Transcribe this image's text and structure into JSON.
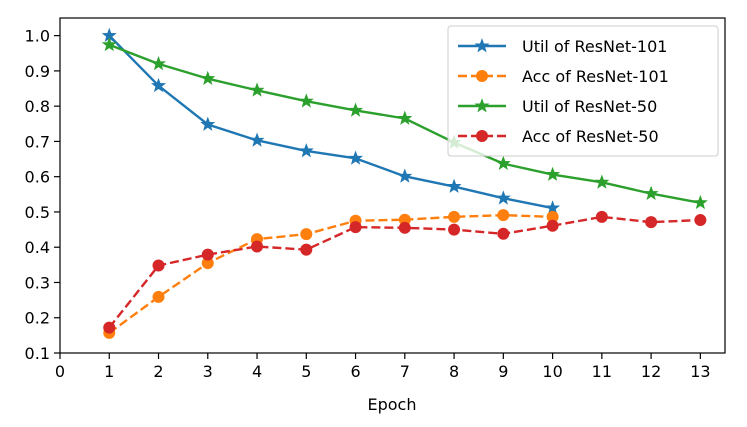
{
  "chart_data": {
    "type": "line",
    "title": "",
    "xlabel": "Epoch",
    "ylabel": "",
    "xlim": [
      0,
      13.5
    ],
    "ylim": [
      0.1,
      1.05
    ],
    "xticks": [
      0,
      1,
      2,
      3,
      4,
      5,
      6,
      7,
      8,
      9,
      10,
      11,
      12,
      13
    ],
    "yticks": [
      0.1,
      0.2,
      0.3,
      0.4,
      0.5,
      0.6,
      0.7,
      0.8,
      0.9,
      1.0
    ],
    "ytick_labels": [
      "0.1",
      "0.2",
      "0.3",
      "0.4",
      "0.5",
      "0.6",
      "0.7",
      "0.8",
      "0.9",
      "1.0"
    ],
    "grid": false,
    "legend_position": "top-right",
    "series": [
      {
        "name": "Util of ResNet-101",
        "color": "#1f77b4",
        "line_style": "solid",
        "marker": "star",
        "x": [
          1,
          2,
          3,
          4,
          5,
          6,
          7,
          8,
          9,
          10
        ],
        "values": [
          1.0,
          0.858,
          0.748,
          0.703,
          0.673,
          0.652,
          0.601,
          0.572,
          0.539,
          0.511
        ]
      },
      {
        "name": "Acc of ResNet-101",
        "color": "#ff7f0e",
        "line_style": "dashed",
        "marker": "circle",
        "x": [
          1,
          2,
          3,
          4,
          5,
          6,
          7,
          8,
          9,
          10
        ],
        "values": [
          0.157,
          0.259,
          0.355,
          0.423,
          0.437,
          0.475,
          0.478,
          0.486,
          0.491,
          0.486
        ]
      },
      {
        "name": "Util of ResNet-50",
        "color": "#2ca02c",
        "line_style": "solid",
        "marker": "star",
        "x": [
          1,
          2,
          3,
          4,
          5,
          6,
          7,
          8,
          9,
          10,
          11,
          12,
          13
        ],
        "values": [
          0.974,
          0.92,
          0.878,
          0.845,
          0.814,
          0.788,
          0.765,
          0.697,
          0.637,
          0.606,
          0.584,
          0.552,
          0.526
        ]
      },
      {
        "name": "Acc of ResNet-50",
        "color": "#d62728",
        "line_style": "dashed",
        "marker": "circle",
        "x": [
          1,
          2,
          3,
          4,
          5,
          6,
          7,
          8,
          9,
          10,
          11,
          12,
          13
        ],
        "values": [
          0.172,
          0.348,
          0.379,
          0.402,
          0.393,
          0.457,
          0.455,
          0.45,
          0.438,
          0.461,
          0.486,
          0.471,
          0.477
        ]
      }
    ]
  }
}
